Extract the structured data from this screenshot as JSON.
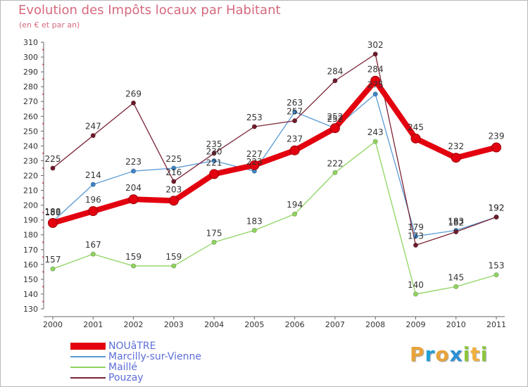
{
  "header": {
    "title": "Evolution des Impôts locaux par Habitant",
    "subtitle": "(en € et par an)"
  },
  "logo": {
    "text": "Proxiti",
    "letters": [
      "P",
      "r",
      "o",
      "x",
      "i",
      "t",
      "i"
    ],
    "colors": [
      "#e8a33a",
      "#1f9fd8",
      "#e8a33a",
      "#2b8fd6",
      "#8cc63f",
      "#f0b03c",
      "#8cc63f"
    ]
  },
  "legend": {
    "items": [
      {
        "label": "NOUâTRE",
        "color": "#e3000f",
        "weight": "thick"
      },
      {
        "label": "Marcilly-sur-Vienne",
        "color": "#5b9bd5",
        "weight": "thin"
      },
      {
        "label": "Maillé",
        "color": "#8fd45f",
        "weight": "thin"
      },
      {
        "label": "Pouzay",
        "color": "#7b2335",
        "weight": "thin"
      }
    ]
  },
  "chart_data": {
    "type": "line",
    "title": "Evolution des Impôts locaux par Habitant",
    "subtitle": "(en € et par an)",
    "xlabel": "",
    "ylabel": "",
    "x": [
      "2000",
      "2001",
      "2002",
      "2003",
      "2004",
      "2005",
      "2006",
      "2007",
      "2008",
      "2009",
      "2010",
      "2011"
    ],
    "ylim": [
      130,
      310
    ],
    "ytick_step": 10,
    "grid": false,
    "legend_position": "bottom-left",
    "series": [
      {
        "name": "Maillé",
        "color": "#8fd45f",
        "marker_color": "#8fd45f",
        "values": [
          157,
          167,
          159,
          159,
          175,
          183,
          194,
          222,
          243,
          140,
          145,
          153
        ]
      },
      {
        "name": "Marcilly-sur-Vienne",
        "color": "#5b9bd5",
        "marker_color": "#3d85c6",
        "values": [
          189,
          214,
          223,
          225,
          230,
          223,
          263,
          252,
          275,
          179,
          183,
          192
        ]
      },
      {
        "name": "Pouzay",
        "color": "#7b2335",
        "marker_color": "#6e1a2a",
        "values": [
          225,
          247,
          269,
          216,
          235,
          253,
          257,
          284,
          302,
          173,
          182,
          192
        ]
      },
      {
        "name": "NOUâTRE",
        "color": "#e3000f",
        "marker_color": "#e3000f",
        "thick": true,
        "values": [
          188,
          196,
          204,
          203,
          221,
          227,
          237,
          252,
          284,
          245,
          232,
          239
        ]
      }
    ],
    "data_labels": [
      {
        "series": "NOUâTRE",
        "values": [
          188,
          196,
          204,
          203,
          221,
          227,
          237,
          252,
          284,
          245,
          232,
          239
        ]
      },
      {
        "series": "Marcilly-sur-Vienne",
        "values": [
          189,
          214,
          223,
          225,
          230,
          223,
          263,
          252,
          275,
          179,
          183,
          192
        ]
      },
      {
        "series": "Maillé",
        "values": [
          157,
          167,
          159,
          159,
          175,
          183,
          194,
          222,
          243,
          140,
          145,
          153
        ]
      },
      {
        "series": "Pouzay",
        "values": [
          225,
          247,
          269,
          216,
          235,
          253,
          257,
          284,
          302,
          173,
          182,
          192
        ]
      }
    ]
  }
}
